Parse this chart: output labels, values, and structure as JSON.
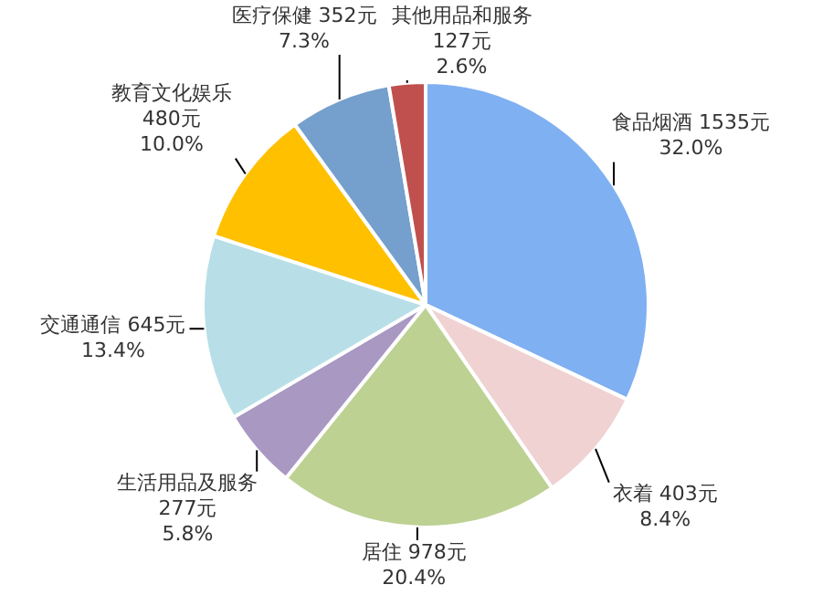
{
  "chart_data": {
    "type": "pie",
    "categories": [
      "食品烟酒",
      "衣着",
      "居住",
      "生活用品及服务",
      "交通通信",
      "教育文化娱乐",
      "医疗保健",
      "其他用品和服务"
    ],
    "values": [
      1535,
      403,
      978,
      277,
      645,
      480,
      352,
      127
    ],
    "colors": [
      "#7fb0f2",
      "#f0d2d2",
      "#bdd193",
      "#a898c2",
      "#b8dfe7",
      "#ffc000",
      "#759fcc",
      "#c0504d"
    ],
    "value_labels": [
      "1535元\n32.0%",
      "403元\n8.4%",
      "978元\n20.4%",
      "277元\n5.8%",
      "645元\n13.4%",
      "480元\n10.0%",
      "352元\n7.3%",
      "127元\n2.6%"
    ]
  }
}
